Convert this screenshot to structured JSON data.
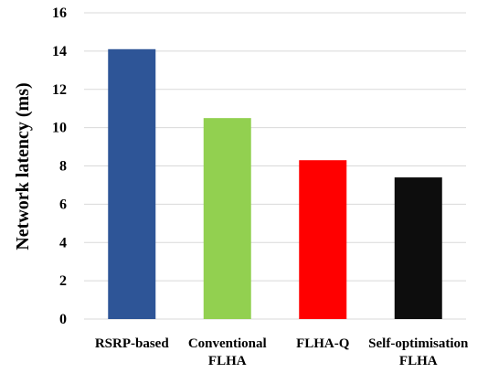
{
  "chart_data": {
    "type": "bar",
    "categories": [
      [
        "RSRP-based"
      ],
      [
        "Conventional",
        "FLHA"
      ],
      [
        "FLHA-Q"
      ],
      [
        "Self-optimisation",
        "FLHA"
      ]
    ],
    "values": [
      14.1,
      10.5,
      8.3,
      7.4
    ],
    "colors": [
      "#2e5597",
      "#92d050",
      "#ff0000",
      "#0d0d0d"
    ],
    "title": "",
    "xlabel": "",
    "ylabel": "Network latency (ms)",
    "ylim": [
      0,
      16
    ],
    "yticks": [
      0,
      2,
      4,
      6,
      8,
      10,
      12,
      14,
      16
    ],
    "grid": true,
    "legend": "none"
  }
}
